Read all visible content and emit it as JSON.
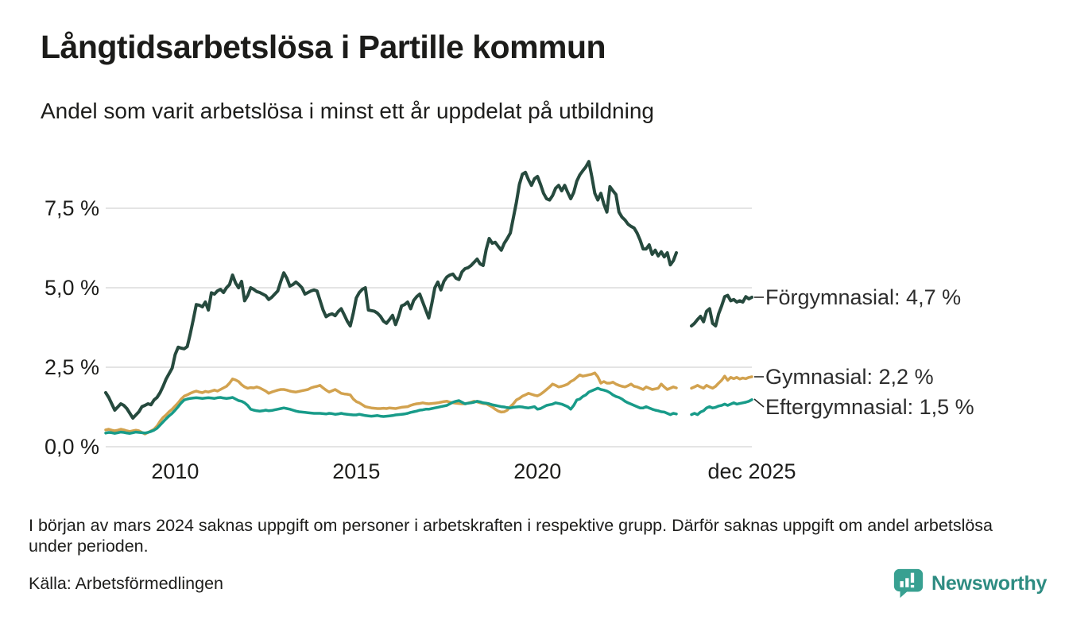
{
  "header": {
    "title": "Långtidsarbetslösa i Partille kommun",
    "subtitle": "Andel som varit arbetslösa i minst ett år uppdelat på utbildning"
  },
  "footnote": {
    "text": "I början av mars 2024 saknas uppgift om personer i arbetskraften i respektive grupp. Därför saknas uppgift om andel arbetslösa under perioden.",
    "source": "Källa: Arbetsförmedlingen"
  },
  "branding": {
    "name": "Newsworthy",
    "icon": "speech-bubble-bar-chart",
    "icon_color": "#38a091",
    "text_color": "#2e8c82"
  },
  "chart_data": {
    "type": "line",
    "title": "Långtidsarbetslösa i Partille kommun",
    "subtitle": "Andel som varit arbetslösa i minst ett år uppdelat på utbildning",
    "x_unit": "månad",
    "x_start": 2008.0833,
    "x_end": 2025.9167,
    "x_step_months": 1,
    "ylim": [
      0,
      9.5
    ],
    "grid": true,
    "grid_color": "#e4e4e4",
    "legend_position": "right-of-line-end",
    "missing_data_period": "dec 2023 – mars 2024 (lucka i linjerna)",
    "y_ticks": [
      {
        "value": 7.5,
        "label": "7,5 %"
      },
      {
        "value": 5.0,
        "label": "5,0 %"
      },
      {
        "value": 2.5,
        "label": "2,5 %"
      },
      {
        "value": 0.0,
        "label": "0,0 %"
      }
    ],
    "x_ticks": [
      {
        "label": "2010",
        "year": 2010.0
      },
      {
        "label": "2015",
        "year": 2015.0
      },
      {
        "label": "2020",
        "year": 2020.0
      },
      {
        "label": "dec 2025",
        "year": 2025.9167
      }
    ],
    "series": [
      {
        "name": "Förgymnasial",
        "label_text": "Förgymnasial: 4,7 %",
        "last_value": 4.7,
        "color": "#264a3e",
        "stroke_width": 4,
        "values": [
          1.7,
          1.55,
          1.35,
          1.15,
          1.25,
          1.35,
          1.3,
          1.2,
          1.05,
          0.9,
          1.0,
          1.1,
          1.26,
          1.3,
          1.35,
          1.32,
          1.47,
          1.55,
          1.7,
          1.9,
          2.13,
          2.3,
          2.47,
          2.9,
          3.13,
          3.1,
          3.08,
          3.15,
          3.55,
          4.0,
          4.47,
          4.45,
          4.4,
          4.55,
          4.3,
          4.84,
          4.8,
          4.9,
          4.95,
          4.85,
          5.0,
          5.1,
          5.4,
          5.15,
          5.0,
          5.2,
          4.59,
          4.75,
          5.0,
          4.95,
          4.88,
          4.85,
          4.8,
          4.75,
          4.63,
          4.7,
          4.8,
          4.9,
          5.2,
          5.47,
          5.3,
          5.05,
          5.1,
          5.18,
          5.1,
          5.0,
          4.8,
          4.85,
          4.9,
          4.93,
          4.9,
          4.6,
          4.3,
          4.09,
          4.15,
          4.18,
          4.12,
          4.25,
          4.34,
          4.15,
          3.95,
          3.8,
          4.2,
          4.68,
          4.85,
          4.95,
          5.0,
          4.3,
          4.28,
          4.26,
          4.2,
          4.1,
          3.95,
          3.88,
          4.0,
          4.13,
          3.84,
          4.1,
          4.43,
          4.47,
          4.55,
          4.34,
          4.6,
          4.72,
          4.8,
          4.55,
          4.3,
          4.05,
          4.5,
          5.0,
          5.18,
          4.93,
          5.2,
          5.34,
          5.4,
          5.43,
          5.3,
          5.26,
          5.5,
          5.6,
          5.63,
          5.7,
          5.8,
          5.9,
          5.75,
          5.7,
          6.2,
          6.55,
          6.4,
          6.43,
          6.3,
          6.18,
          6.4,
          6.55,
          6.72,
          7.2,
          7.68,
          8.25,
          8.57,
          8.63,
          8.4,
          8.22,
          8.43,
          8.5,
          8.25,
          7.97,
          7.8,
          7.76,
          7.9,
          8.13,
          8.22,
          8.05,
          8.22,
          8.0,
          7.8,
          8.0,
          8.35,
          8.55,
          8.68,
          8.8,
          8.97,
          8.5,
          7.97,
          7.76,
          7.97,
          7.63,
          7.38,
          8.18,
          8.05,
          7.93,
          7.38,
          7.22,
          7.13,
          7.0,
          6.93,
          6.88,
          6.72,
          6.5,
          6.22,
          6.22,
          6.35,
          6.05,
          6.18,
          6.0,
          6.13,
          5.97,
          6.1,
          5.72,
          5.85,
          6.1,
          null,
          null,
          null,
          null,
          3.8,
          3.88,
          4.0,
          4.1,
          3.93,
          4.26,
          4.34,
          3.88,
          3.8,
          4.18,
          4.43,
          4.72,
          4.76,
          4.59,
          4.63,
          4.55,
          4.59,
          4.55,
          4.72,
          4.65,
          4.7
        ]
      },
      {
        "name": "Gymnasial",
        "label_text": "Gymnasial: 2,2 %",
        "last_value": 2.2,
        "color": "#d2a24f",
        "stroke_width": 3.5,
        "values": [
          0.53,
          0.55,
          0.52,
          0.5,
          0.52,
          0.55,
          0.53,
          0.5,
          0.48,
          0.5,
          0.52,
          0.5,
          0.45,
          0.4,
          0.45,
          0.5,
          0.55,
          0.65,
          0.8,
          0.92,
          1.0,
          1.1,
          1.18,
          1.28,
          1.38,
          1.5,
          1.59,
          1.63,
          1.68,
          1.72,
          1.75,
          1.72,
          1.7,
          1.74,
          1.72,
          1.75,
          1.78,
          1.75,
          1.8,
          1.85,
          1.9,
          2.0,
          2.13,
          2.1,
          2.05,
          1.95,
          1.88,
          1.84,
          1.86,
          1.85,
          1.88,
          1.85,
          1.8,
          1.75,
          1.68,
          1.72,
          1.75,
          1.78,
          1.8,
          1.8,
          1.78,
          1.75,
          1.73,
          1.72,
          1.74,
          1.76,
          1.78,
          1.8,
          1.85,
          1.88,
          1.9,
          1.93,
          1.85,
          1.78,
          1.72,
          1.76,
          1.8,
          1.74,
          1.68,
          1.66,
          1.65,
          1.63,
          1.5,
          1.42,
          1.38,
          1.32,
          1.26,
          1.24,
          1.22,
          1.21,
          1.2,
          1.2,
          1.21,
          1.2,
          1.22,
          1.21,
          1.2,
          1.22,
          1.24,
          1.25,
          1.26,
          1.3,
          1.33,
          1.35,
          1.36,
          1.38,
          1.36,
          1.35,
          1.36,
          1.37,
          1.38,
          1.4,
          1.42,
          1.43,
          1.4,
          1.38,
          1.37,
          1.36,
          1.35,
          1.35,
          1.37,
          1.4,
          1.43,
          1.41,
          1.38,
          1.36,
          1.35,
          1.3,
          1.25,
          1.18,
          1.12,
          1.09,
          1.1,
          1.15,
          1.26,
          1.35,
          1.47,
          1.52,
          1.59,
          1.63,
          1.68,
          1.65,
          1.62,
          1.6,
          1.65,
          1.72,
          1.8,
          1.88,
          1.97,
          1.93,
          1.88,
          1.9,
          1.93,
          1.97,
          2.05,
          2.1,
          2.18,
          2.26,
          2.22,
          2.24,
          2.26,
          2.28,
          2.32,
          2.2,
          2.0,
          2.05,
          2.0,
          2.0,
          2.03,
          1.97,
          1.93,
          1.9,
          1.88,
          1.92,
          1.97,
          1.9,
          1.88,
          1.84,
          1.8,
          1.88,
          1.84,
          1.8,
          1.82,
          1.84,
          1.97,
          1.88,
          1.8,
          1.84,
          1.88,
          1.85,
          null,
          null,
          null,
          null,
          1.84,
          1.88,
          1.93,
          1.88,
          1.84,
          1.93,
          1.88,
          1.84,
          1.9,
          2.0,
          2.09,
          2.22,
          2.09,
          2.18,
          2.14,
          2.18,
          2.13,
          2.16,
          2.14,
          2.18,
          2.2
        ]
      },
      {
        "name": "Eftergymnasial",
        "label_text": "Eftergymnasial: 1,5 %",
        "last_value": 1.5,
        "color": "#189b89",
        "stroke_width": 3.5,
        "values": [
          0.43,
          0.45,
          0.44,
          0.42,
          0.44,
          0.46,
          0.45,
          0.43,
          0.42,
          0.44,
          0.46,
          0.45,
          0.44,
          0.43,
          0.45,
          0.48,
          0.52,
          0.58,
          0.68,
          0.78,
          0.88,
          0.97,
          1.05,
          1.15,
          1.26,
          1.38,
          1.47,
          1.5,
          1.52,
          1.53,
          1.54,
          1.53,
          1.52,
          1.53,
          1.54,
          1.53,
          1.52,
          1.54,
          1.55,
          1.53,
          1.52,
          1.53,
          1.55,
          1.5,
          1.45,
          1.43,
          1.38,
          1.3,
          1.18,
          1.15,
          1.13,
          1.12,
          1.13,
          1.15,
          1.13,
          1.14,
          1.16,
          1.18,
          1.2,
          1.22,
          1.2,
          1.18,
          1.15,
          1.12,
          1.1,
          1.09,
          1.08,
          1.07,
          1.06,
          1.05,
          1.05,
          1.05,
          1.04,
          1.03,
          1.05,
          1.04,
          1.02,
          1.03,
          1.05,
          1.03,
          1.02,
          1.01,
          1.0,
          1.0,
          1.02,
          1.0,
          0.98,
          0.97,
          0.96,
          0.97,
          0.98,
          0.96,
          0.95,
          0.96,
          0.97,
          0.98,
          1.0,
          1.01,
          1.02,
          1.03,
          1.05,
          1.08,
          1.1,
          1.12,
          1.15,
          1.16,
          1.18,
          1.18,
          1.2,
          1.22,
          1.24,
          1.26,
          1.28,
          1.3,
          1.35,
          1.4,
          1.43,
          1.45,
          1.4,
          1.35,
          1.37,
          1.38,
          1.4,
          1.43,
          1.41,
          1.38,
          1.37,
          1.35,
          1.32,
          1.3,
          1.28,
          1.26,
          1.25,
          1.23,
          1.22,
          1.24,
          1.25,
          1.26,
          1.25,
          1.23,
          1.22,
          1.24,
          1.26,
          1.18,
          1.2,
          1.25,
          1.3,
          1.32,
          1.34,
          1.38,
          1.36,
          1.34,
          1.3,
          1.26,
          1.18,
          1.3,
          1.47,
          1.5,
          1.58,
          1.63,
          1.72,
          1.76,
          1.8,
          1.84,
          1.8,
          1.78,
          1.75,
          1.7,
          1.63,
          1.58,
          1.55,
          1.5,
          1.43,
          1.38,
          1.34,
          1.3,
          1.26,
          1.22,
          1.22,
          1.26,
          1.22,
          1.18,
          1.15,
          1.13,
          1.1,
          1.09,
          1.05,
          1.01,
          1.05,
          1.03,
          null,
          null,
          null,
          null,
          1.01,
          1.05,
          1.01,
          1.09,
          1.13,
          1.22,
          1.26,
          1.22,
          1.24,
          1.28,
          1.3,
          1.34,
          1.3,
          1.34,
          1.38,
          1.34,
          1.36,
          1.38,
          1.4,
          1.43,
          1.48
        ]
      }
    ]
  }
}
